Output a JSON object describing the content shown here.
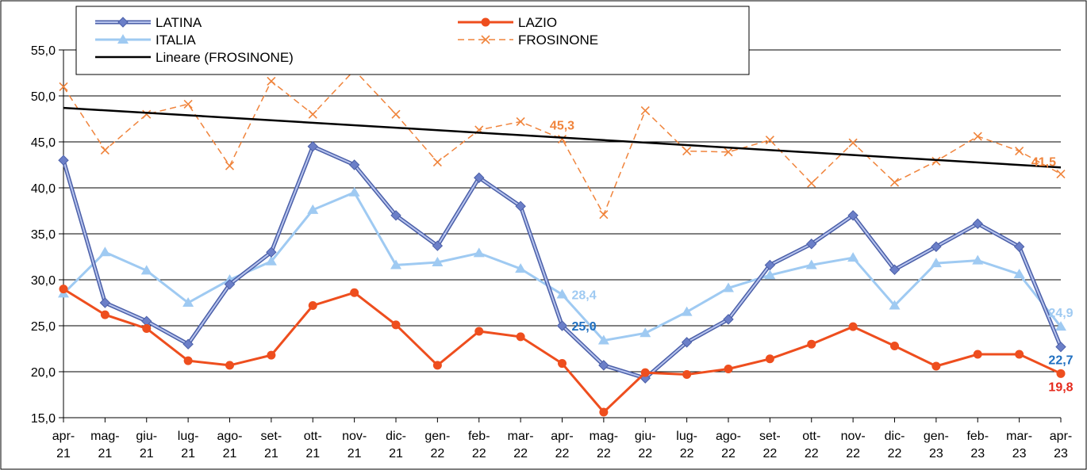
{
  "chart_data": {
    "type": "line",
    "categories": [
      [
        "apr-",
        "21"
      ],
      [
        "mag-",
        "21"
      ],
      [
        "giu-",
        "21"
      ],
      [
        "lug-",
        "21"
      ],
      [
        "ago-",
        "21"
      ],
      [
        "set-",
        "21"
      ],
      [
        "ott-",
        "21"
      ],
      [
        "nov-",
        "21"
      ],
      [
        "dic-",
        "21"
      ],
      [
        "gen-",
        "22"
      ],
      [
        "feb-",
        "22"
      ],
      [
        "mar-",
        "22"
      ],
      [
        "apr-",
        "22"
      ],
      [
        "mag-",
        "22"
      ],
      [
        "giu-",
        "22"
      ],
      [
        "lug-",
        "22"
      ],
      [
        "ago-",
        "22"
      ],
      [
        "set-",
        "22"
      ],
      [
        "ott-",
        "22"
      ],
      [
        "nov-",
        "22"
      ],
      [
        "dic-",
        "22"
      ],
      [
        "gen-",
        "23"
      ],
      [
        "feb-",
        "23"
      ],
      [
        "mar-",
        "23"
      ],
      [
        "apr-",
        "23"
      ]
    ],
    "ylim": [
      15,
      55
    ],
    "y_ticks": [
      "15,0",
      "20,0",
      "25,0",
      "30,0",
      "35,0",
      "40,0",
      "45,0",
      "50,0",
      "55,0"
    ],
    "grid": true,
    "series": [
      {
        "name": "LATINA",
        "color": "#6b7fc8",
        "marker": "diamond",
        "style": "solid",
        "values": [
          43.0,
          27.5,
          25.5,
          23.0,
          29.5,
          33.0,
          44.5,
          42.5,
          37.0,
          33.7,
          41.1,
          38.0,
          25.0,
          20.7,
          19.3,
          23.2,
          25.7,
          31.6,
          33.9,
          37.0,
          31.1,
          33.6,
          36.1,
          33.6,
          22.7
        ]
      },
      {
        "name": "LAZIO",
        "color": "#ee4e1e",
        "marker": "circle",
        "style": "solid",
        "values": [
          29.0,
          26.2,
          24.7,
          21.2,
          20.7,
          21.8,
          27.2,
          28.6,
          25.1,
          20.7,
          24.4,
          23.8,
          20.9,
          15.6,
          19.9,
          19.7,
          20.3,
          21.4,
          23.0,
          24.9,
          22.8,
          20.6,
          21.9,
          21.9,
          19.8
        ]
      },
      {
        "name": "ITALIA",
        "color": "#9fcaf2",
        "marker": "triangle",
        "style": "solid",
        "values": [
          28.5,
          33.0,
          31.0,
          27.5,
          30.0,
          32.0,
          37.6,
          39.5,
          31.6,
          31.9,
          32.9,
          31.2,
          28.4,
          23.4,
          24.2,
          26.5,
          29.1,
          30.5,
          31.6,
          32.4,
          27.2,
          31.8,
          32.1,
          30.6,
          24.9
        ]
      },
      {
        "name": "FROSINONE",
        "color": "#f0843c",
        "marker": "x",
        "style": "dashed",
        "values": [
          51.0,
          44.1,
          48.0,
          49.1,
          42.4,
          51.6,
          48.0,
          52.8,
          48.0,
          42.8,
          46.3,
          47.2,
          45.3,
          37.1,
          48.4,
          44.0,
          43.9,
          45.2,
          40.5,
          44.9,
          40.6,
          42.9,
          45.6,
          44.0,
          41.5
        ]
      },
      {
        "name": "Lineare (FROSINONE)",
        "color": "#000000",
        "marker": "none",
        "style": "trend",
        "values": [
          48.7,
          48.43,
          48.16,
          47.89,
          47.62,
          47.35,
          47.08,
          46.81,
          46.54,
          46.27,
          46.0,
          45.73,
          45.46,
          45.19,
          44.92,
          44.65,
          44.38,
          44.11,
          43.84,
          43.57,
          43.3,
          43.03,
          42.76,
          42.49,
          42.22
        ]
      }
    ],
    "annotations": [
      {
        "text": "45,3",
        "series": "FROSINONE",
        "index": 12,
        "color": "#f0843c",
        "pos": "above"
      },
      {
        "text": "41,5",
        "series": "FROSINONE",
        "index": 24,
        "color": "#f0843c",
        "pos": "above-left"
      },
      {
        "text": "28,4",
        "series": "ITALIA",
        "index": 12,
        "color": "#9fcaf2",
        "pos": "right"
      },
      {
        "text": "25,0",
        "series": "LATINA",
        "index": 12,
        "color": "#1f6fc0",
        "pos": "right"
      },
      {
        "text": "24,9",
        "series": "ITALIA",
        "index": 24,
        "color": "#9fcaf2",
        "pos": "above"
      },
      {
        "text": "22,7",
        "series": "LATINA",
        "index": 24,
        "color": "#1f6fc0",
        "pos": "below"
      },
      {
        "text": "19,8",
        "series": "LAZIO",
        "index": 24,
        "color": "#e52b1e",
        "pos": "below"
      }
    ],
    "legend": {
      "placement": "top-left",
      "entries": [
        "LATINA",
        "LAZIO",
        "ITALIA",
        "FROSINONE",
        "Lineare (FROSINONE)"
      ]
    }
  }
}
